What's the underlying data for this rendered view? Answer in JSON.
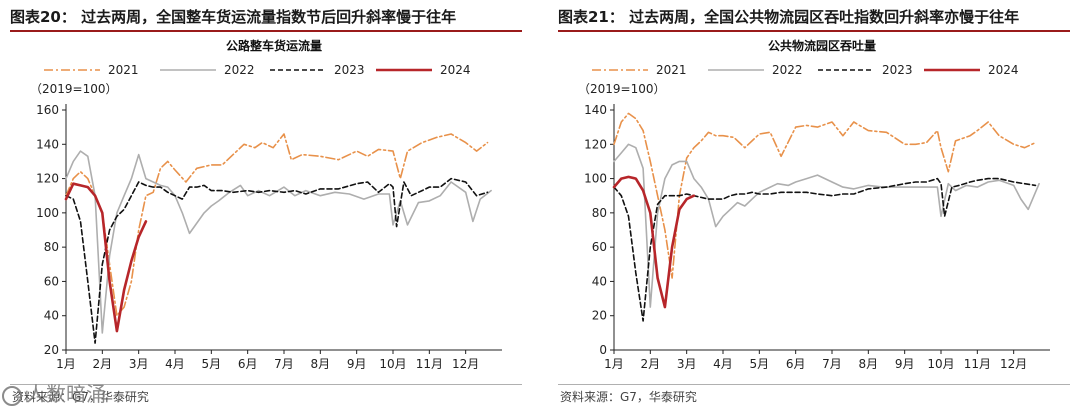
{
  "panels": [
    {
      "figure_title": "图表20：   过去两周，全国整车货运流量指数节后回升斜率慢于往年",
      "source": "资料来源：G7，华泰研究",
      "chart_data": {
        "type": "line",
        "title": "公路整车货运流量",
        "unit_label": "（2019=100）",
        "x_ticks": [
          "1月",
          "2月",
          "3月",
          "4月",
          "5月",
          "6月",
          "7月",
          "8月",
          "9月",
          "10月",
          "11月",
          "12月"
        ],
        "ylim": [
          20,
          160
        ],
        "y_ticks": [
          20,
          40,
          60,
          80,
          100,
          120,
          140,
          160
        ],
        "xlim": [
          1,
          13
        ],
        "grid": false,
        "legend": "top",
        "series": [
          {
            "name": "2021",
            "color": "#e8914a",
            "dash": "dashdot",
            "x": [
              1.0,
              1.2,
              1.4,
              1.6,
              1.8,
              2.0,
              2.2,
              2.4,
              2.6,
              2.8,
              3.0,
              3.2,
              3.4,
              3.6,
              3.8,
              4.0,
              4.3,
              4.6,
              5.0,
              5.3,
              5.6,
              5.9,
              6.2,
              6.4,
              6.7,
              7.0,
              7.2,
              7.5,
              8.0,
              8.5,
              9.0,
              9.3,
              9.6,
              10.0,
              10.2,
              10.4,
              10.8,
              11.2,
              11.6,
              12.0,
              12.3,
              12.6
            ],
            "y": [
              110,
              120,
              124,
              120,
              110,
              100,
              70,
              40,
              45,
              60,
              90,
              110,
              112,
              126,
              130,
              125,
              118,
              126,
              128,
              128,
              134,
              140,
              138,
              141,
              138,
              146,
              131,
              134,
              133,
              131,
              136,
              133,
              137,
              136,
              120,
              136,
              141,
              144,
              146,
              141,
              136,
              141
            ]
          },
          {
            "name": "2022",
            "color": "#aeaeae",
            "dash": "solid",
            "x": [
              1.0,
              1.2,
              1.4,
              1.6,
              1.8,
              2.0,
              2.2,
              2.4,
              2.6,
              2.8,
              3.0,
              3.2,
              3.4,
              3.6,
              3.8,
              4.0,
              4.2,
              4.4,
              4.6,
              4.8,
              5.0,
              5.2,
              5.5,
              5.8,
              6.0,
              6.3,
              6.6,
              7.0,
              7.3,
              7.6,
              8.0,
              8.4,
              8.8,
              9.2,
              9.6,
              9.9,
              10.0,
              10.2,
              10.4,
              10.7,
              11.0,
              11.3,
              11.6,
              12.0,
              12.2,
              12.4,
              12.7
            ],
            "y": [
              120,
              130,
              136,
              133,
              110,
              30,
              75,
              100,
              110,
              120,
              134,
              120,
              118,
              116,
              115,
              110,
              100,
              88,
              94,
              100,
              104,
              107,
              112,
              116,
              110,
              113,
              110,
              115,
              110,
              113,
              110,
              112,
              111,
              108,
              111,
              111,
              93,
              107,
              93,
              106,
              107,
              110,
              118,
              112,
              95,
              108,
              113
            ]
          },
          {
            "name": "2023",
            "color": "#111111",
            "dash": "dashed",
            "x": [
              1.0,
              1.2,
              1.4,
              1.6,
              1.8,
              2.0,
              2.2,
              2.4,
              2.6,
              2.8,
              3.0,
              3.2,
              3.4,
              3.6,
              3.8,
              4.0,
              4.2,
              4.4,
              4.6,
              4.8,
              5.0,
              5.3,
              5.6,
              6.0,
              6.3,
              6.6,
              7.0,
              7.3,
              7.6,
              8.0,
              8.5,
              9.0,
              9.3,
              9.6,
              9.9,
              10.0,
              10.1,
              10.3,
              10.5,
              10.8,
              11.0,
              11.3,
              11.6,
              12.0,
              12.3,
              12.6
            ],
            "y": [
              110,
              108,
              95,
              60,
              24,
              70,
              90,
              98,
              102,
              110,
              118,
              116,
              115,
              115,
              112,
              110,
              108,
              115,
              115,
              116,
              113,
              113,
              112,
              113,
              112,
              113,
              112,
              113,
              111,
              114,
              114,
              117,
              118,
              112,
              117,
              115,
              92,
              118,
              110,
              113,
              115,
              115,
              120,
              118,
              110,
              112
            ]
          },
          {
            "name": "2024",
            "color": "#b7262a",
            "dash": "solid",
            "x": [
              1.0,
              1.2,
              1.4,
              1.6,
              1.8,
              2.0,
              2.2,
              2.4,
              2.6,
              2.8,
              3.0,
              3.2
            ],
            "y": [
              108,
              117,
              116,
              115,
              110,
              100,
              60,
              31,
              55,
              72,
              86,
              95
            ]
          }
        ]
      }
    },
    {
      "figure_title": "图表21：   过去两周，全国公共物流园区吞吐指数回升斜率亦慢于往年",
      "source": "资料来源：G7，华泰研究",
      "chart_data": {
        "type": "line",
        "title": "公共物流园区吞吐量",
        "unit_label": "（2019=100）",
        "x_ticks": [
          "1月",
          "2月",
          "3月",
          "4月",
          "5月",
          "6月",
          "7月",
          "8月",
          "9月",
          "10月",
          "11月",
          "12月"
        ],
        "ylim": [
          0,
          140
        ],
        "y_ticks": [
          0,
          20,
          40,
          60,
          80,
          100,
          120,
          140
        ],
        "xlim": [
          1,
          13
        ],
        "grid": false,
        "legend": "top",
        "series": [
          {
            "name": "2021",
            "color": "#e8914a",
            "dash": "dashdot",
            "x": [
              1.0,
              1.2,
              1.4,
              1.6,
              1.8,
              2.0,
              2.2,
              2.4,
              2.6,
              2.8,
              3.0,
              3.2,
              3.4,
              3.6,
              3.8,
              4.0,
              4.3,
              4.6,
              5.0,
              5.3,
              5.6,
              6.0,
              6.3,
              6.6,
              7.0,
              7.3,
              7.6,
              8.0,
              8.5,
              9.0,
              9.3,
              9.6,
              9.9,
              10.0,
              10.2,
              10.4,
              10.8,
              11.0,
              11.3,
              11.6,
              12.0,
              12.3,
              12.6
            ],
            "y": [
              120,
              133,
              138,
              135,
              128,
              110,
              90,
              70,
              42,
              90,
              112,
              118,
              122,
              127,
              125,
              125,
              124,
              118,
              126,
              127,
              113,
              130,
              131,
              130,
              133,
              125,
              133,
              128,
              127,
              120,
              120,
              121,
              128,
              118,
              104,
              122,
              125,
              128,
              133,
              125,
              120,
              118,
              121
            ]
          },
          {
            "name": "2022",
            "color": "#aeaeae",
            "dash": "solid",
            "x": [
              1.0,
              1.2,
              1.4,
              1.6,
              1.8,
              2.0,
              2.2,
              2.4,
              2.6,
              2.8,
              3.0,
              3.2,
              3.4,
              3.6,
              3.8,
              4.0,
              4.2,
              4.4,
              4.6,
              4.8,
              5.0,
              5.2,
              5.5,
              5.8,
              6.0,
              6.3,
              6.6,
              7.0,
              7.3,
              7.6,
              8.0,
              8.4,
              8.8,
              9.2,
              9.6,
              9.9,
              10.0,
              10.2,
              10.4,
              10.7,
              11.0,
              11.3,
              11.6,
              12.0,
              12.2,
              12.4,
              12.7
            ],
            "y": [
              110,
              115,
              120,
              118,
              106,
              25,
              80,
              100,
              108,
              110,
              110,
              100,
              95,
              88,
              72,
              78,
              82,
              86,
              84,
              88,
              92,
              94,
              97,
              96,
              98,
              100,
              102,
              98,
              95,
              94,
              96,
              95,
              95,
              95,
              95,
              95,
              78,
              97,
              93,
              96,
              95,
              98,
              99,
              96,
              88,
              82,
              97
            ]
          },
          {
            "name": "2023",
            "color": "#111111",
            "dash": "dashed",
            "x": [
              1.0,
              1.2,
              1.4,
              1.6,
              1.8,
              2.0,
              2.2,
              2.4,
              2.6,
              2.8,
              3.0,
              3.2,
              3.4,
              3.6,
              3.8,
              4.0,
              4.2,
              4.4,
              4.6,
              4.8,
              5.0,
              5.3,
              5.6,
              6.0,
              6.3,
              6.6,
              7.0,
              7.3,
              7.6,
              8.0,
              8.5,
              9.0,
              9.3,
              9.6,
              9.9,
              10.0,
              10.1,
              10.3,
              10.5,
              10.8,
              11.0,
              11.3,
              11.6,
              12.0,
              12.3,
              12.6
            ],
            "y": [
              95,
              90,
              78,
              45,
              17,
              60,
              85,
              90,
              90,
              90,
              91,
              90,
              89,
              88,
              88,
              88,
              90,
              91,
              91,
              92,
              91,
              91,
              92,
              92,
              92,
              91,
              90,
              91,
              91,
              94,
              95,
              97,
              98,
              98,
              100,
              97,
              78,
              95,
              96,
              98,
              99,
              100,
              100,
              98,
              97,
              96
            ]
          },
          {
            "name": "2024",
            "color": "#b7262a",
            "dash": "solid",
            "x": [
              1.0,
              1.2,
              1.4,
              1.6,
              1.8,
              2.0,
              2.2,
              2.4,
              2.6,
              2.8,
              3.0,
              3.2
            ],
            "y": [
              95,
              100,
              101,
              100,
              93,
              80,
              42,
              25,
              60,
              82,
              88,
              90
            ]
          }
        ]
      }
    }
  ],
  "watermark": {
    "icon": "wechat-icon",
    "text": "人数暗涌"
  }
}
